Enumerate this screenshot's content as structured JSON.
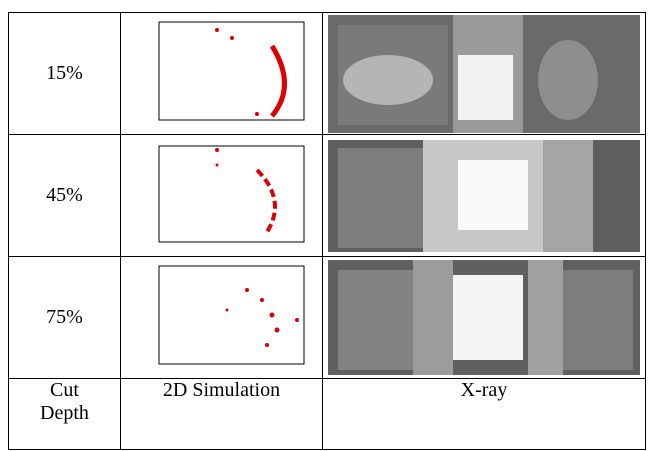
{
  "table": {
    "rows": [
      [
        "15%"
      ],
      [
        "45%"
      ],
      [
        "75%"
      ]
    ],
    "footer": [
      "Cut Depth",
      "2D Simulation",
      "X-ray"
    ]
  }
}
